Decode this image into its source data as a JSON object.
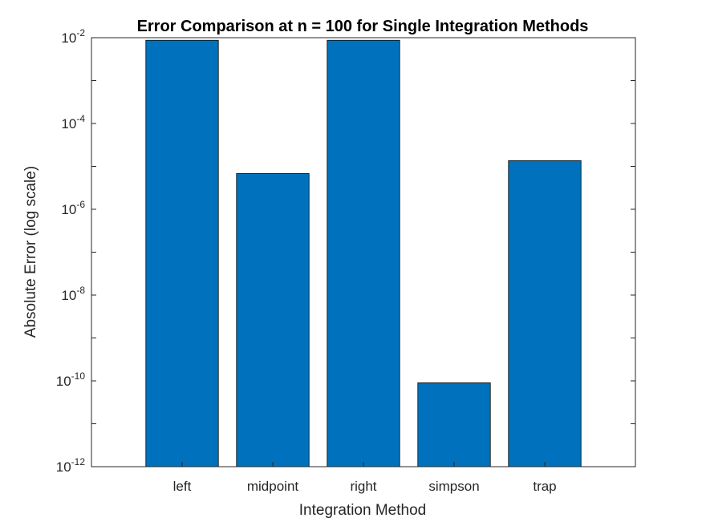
{
  "chart_data": {
    "type": "bar",
    "title": "Error Comparison at n = 100 for Single Integration Methods",
    "xlabel": "Integration Method",
    "ylabel": "Absolute Error (log scale)",
    "categories": [
      "left",
      "midpoint",
      "right",
      "simpson",
      "trap"
    ],
    "values": [
      0.0087,
      6.8e-06,
      0.0087,
      9e-11,
      1.36e-05
    ],
    "yscale": "log",
    "ylim": [
      1e-12,
      0.01
    ],
    "yticks": [
      {
        "base": "10",
        "exp": "-12",
        "value": 1e-12
      },
      {
        "base": "10",
        "exp": "-10",
        "value": 1e-10
      },
      {
        "base": "10",
        "exp": "-8",
        "value": 1e-08
      },
      {
        "base": "10",
        "exp": "-6",
        "value": 1e-06
      },
      {
        "base": "10",
        "exp": "-4",
        "value": 0.0001
      },
      {
        "base": "10",
        "exp": "-2",
        "value": 0.01
      }
    ],
    "grid": false,
    "legend": "none",
    "bar_color": "#0072BD",
    "bar_edge_color": "#000000",
    "axis_color": "#262626"
  }
}
